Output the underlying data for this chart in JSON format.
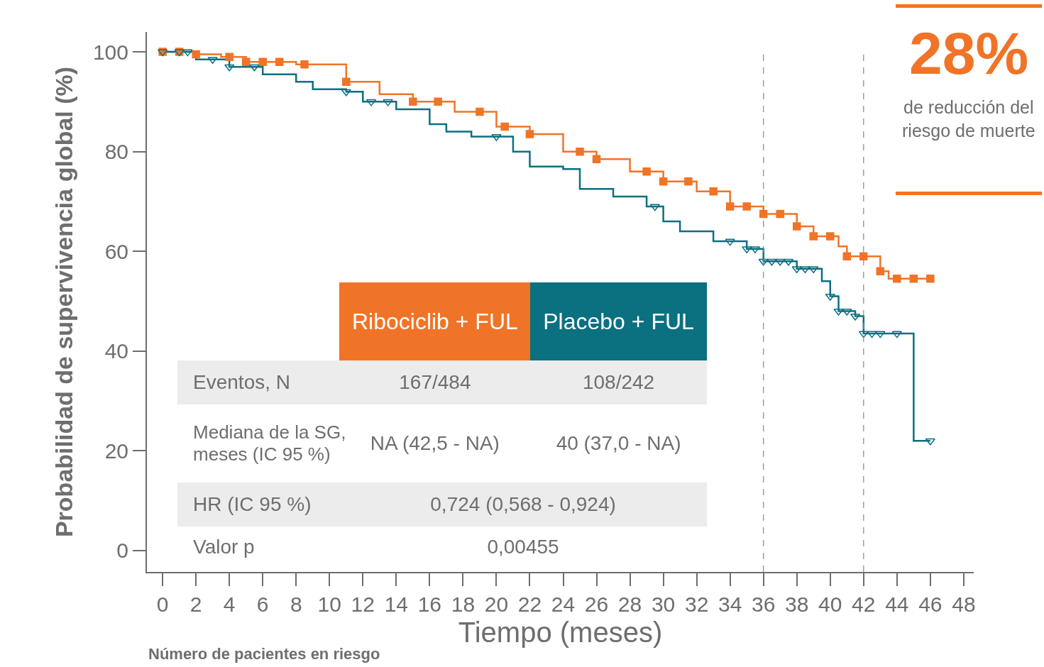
{
  "chart_data": {
    "type": "step",
    "xlabel": "Tiempo (meses)",
    "ylabel": "Probabilidad de supervivencia global (%)",
    "xlim": [
      -0.94,
      48.6
    ],
    "ylim": [
      -4.3,
      104
    ],
    "xticks": [
      0,
      2,
      4,
      6,
      8,
      10,
      12,
      14,
      16,
      18,
      20,
      22,
      24,
      26,
      28,
      30,
      32,
      34,
      36,
      38,
      40,
      42,
      44,
      46,
      48
    ],
    "yticks": [
      0,
      20,
      40,
      60,
      80,
      100
    ],
    "grid": false,
    "legend": false,
    "series": [
      {
        "name": "Ribociclib + FUL",
        "color": "#f07427",
        "marker": "none",
        "x": [
          0,
          2,
          3.5,
          5,
          8,
          11,
          13,
          15,
          17.5,
          20,
          22,
          24,
          26,
          28,
          30,
          32,
          34,
          36,
          38,
          39,
          40.5,
          41,
          43,
          43.5,
          46
        ],
        "values": [
          100,
          99.5,
          99,
          98,
          97.5,
          94,
          91.5,
          90,
          88,
          85,
          83.5,
          80,
          78.5,
          76,
          74,
          72,
          69,
          67.5,
          65,
          63,
          61,
          59,
          56,
          54.5,
          54.5
        ]
      },
      {
        "name": "Placebo + FUL",
        "color": "#0b7080",
        "marker": "none",
        "x": [
          0,
          2,
          4,
          6,
          8,
          9,
          11,
          12,
          14,
          16,
          17,
          18.5,
          21,
          22,
          24,
          25,
          27,
          29,
          30,
          31,
          33,
          35,
          36,
          38,
          39.5,
          40,
          40.5,
          41.5,
          42,
          45,
          46
        ],
        "values": [
          100,
          98.5,
          97,
          95.5,
          94,
          92.5,
          92,
          90,
          88.5,
          85.5,
          84,
          83,
          80,
          77,
          76.5,
          72.5,
          71,
          69,
          66,
          64,
          62,
          60.5,
          58,
          56.5,
          54,
          51,
          48,
          47,
          43.5,
          22,
          22
        ]
      },
      {
        "type": "scatter",
        "color": "#f07427",
        "marker": "square",
        "x": [
          0,
          1,
          2,
          4,
          5,
          6,
          7,
          8.5,
          11,
          15,
          16.5,
          19,
          20.5,
          22,
          25,
          26,
          29,
          30,
          31.5,
          33,
          34,
          35,
          36,
          37,
          38,
          39,
          40,
          41,
          42,
          43,
          44,
          45,
          46
        ],
        "values": [
          100,
          100,
          99.5,
          99,
          98,
          98,
          98,
          97.5,
          94,
          90,
          90,
          88,
          85,
          83.5,
          80,
          78.5,
          76,
          74,
          74,
          72,
          69,
          69,
          67.5,
          67.5,
          65,
          63,
          63,
          59,
          59,
          56,
          54.5,
          54.5,
          54.5
        ]
      },
      {
        "type": "scatter",
        "color": "#0b7080",
        "marker": "triangle",
        "x": [
          0,
          1,
          1.5,
          3,
          4,
          5.5,
          11,
          12.5,
          13.5,
          20,
          29.5,
          34,
          35,
          35.5,
          36,
          36.5,
          37,
          37.5,
          38,
          38.5,
          39,
          40,
          40.5,
          41,
          41.5,
          42,
          42.5,
          43,
          44,
          46
        ],
        "values": [
          100,
          100,
          100,
          98.5,
          97,
          97,
          92,
          90,
          90,
          83,
          69,
          62,
          60.5,
          60.5,
          58,
          58,
          58,
          58,
          56.5,
          56.5,
          56.5,
          51,
          48,
          48,
          47,
          43.5,
          43.5,
          43.5,
          43.5,
          22
        ]
      }
    ],
    "ref_lines": [
      {
        "axis": "x",
        "value": 36,
        "color": "#888888",
        "line_style": "dashed"
      },
      {
        "axis": "x",
        "value": 42,
        "color": "#888888",
        "line_style": "dashed"
      }
    ],
    "annotations": [
      "28%",
      "de reducción del\nriesgo de muerte",
      "Eventos, N",
      "167/484",
      "108/242",
      "Mediana de la SG,\nmeses (IC 95 %)",
      "NA (42,5 - NA)",
      "40 (37,0 - NA)",
      "HR (IC 95 %)",
      "0,724 (0,568 - 0,924)",
      "Valor p",
      "0,00455",
      "Número de pacientes en riesgo"
    ]
  }
}
